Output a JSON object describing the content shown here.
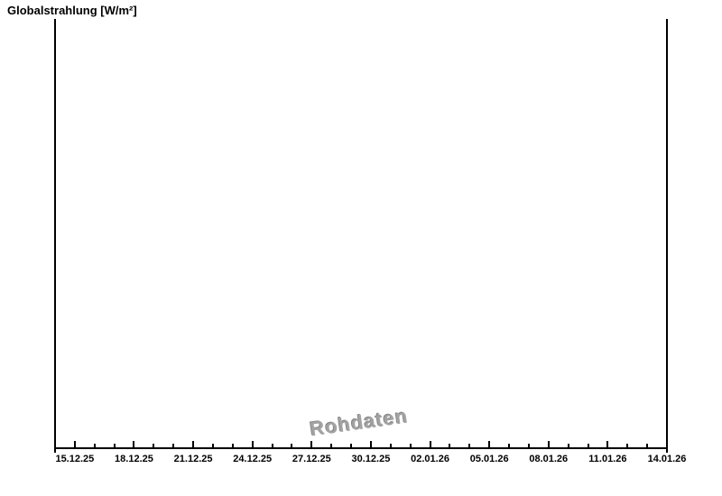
{
  "title": {
    "text": "Globalstrahlung [W/m²]"
  },
  "watermark": {
    "text": "Rohdaten"
  },
  "colors": {
    "background": "#ffffff",
    "axis": "#000000",
    "label_text": "#000000",
    "watermark_gray": "#a3a3a3"
  },
  "chart_data": {
    "type": "line",
    "title": "Globalstrahlung [W/m²]",
    "xlabel": "",
    "ylabel": "Globalstrahlung [W/m²]",
    "series": [],
    "plot_empty": true,
    "grid": false,
    "legend": null,
    "x_axis": {
      "unit": "date",
      "tick_labels": [
        "15.12.25",
        "18.12.25",
        "21.12.25",
        "24.12.25",
        "27.12.25",
        "30.12.25",
        "02.01.26",
        "05.01.26",
        "08.01.26",
        "11.01.26",
        "14.01.26"
      ],
      "major_tick_interval_days": 3,
      "minor_tick_interval_days": 1,
      "total_days_span": 31,
      "first_labeled_day_offset": 1,
      "ticks_direction": "inward-up"
    },
    "y_axis": {
      "tick_labels": [],
      "scale_visible": false
    },
    "annotations": [
      {
        "text": "Rohdaten",
        "style": "embossed-gray-watermark",
        "rotation_deg": -8
      }
    ]
  }
}
